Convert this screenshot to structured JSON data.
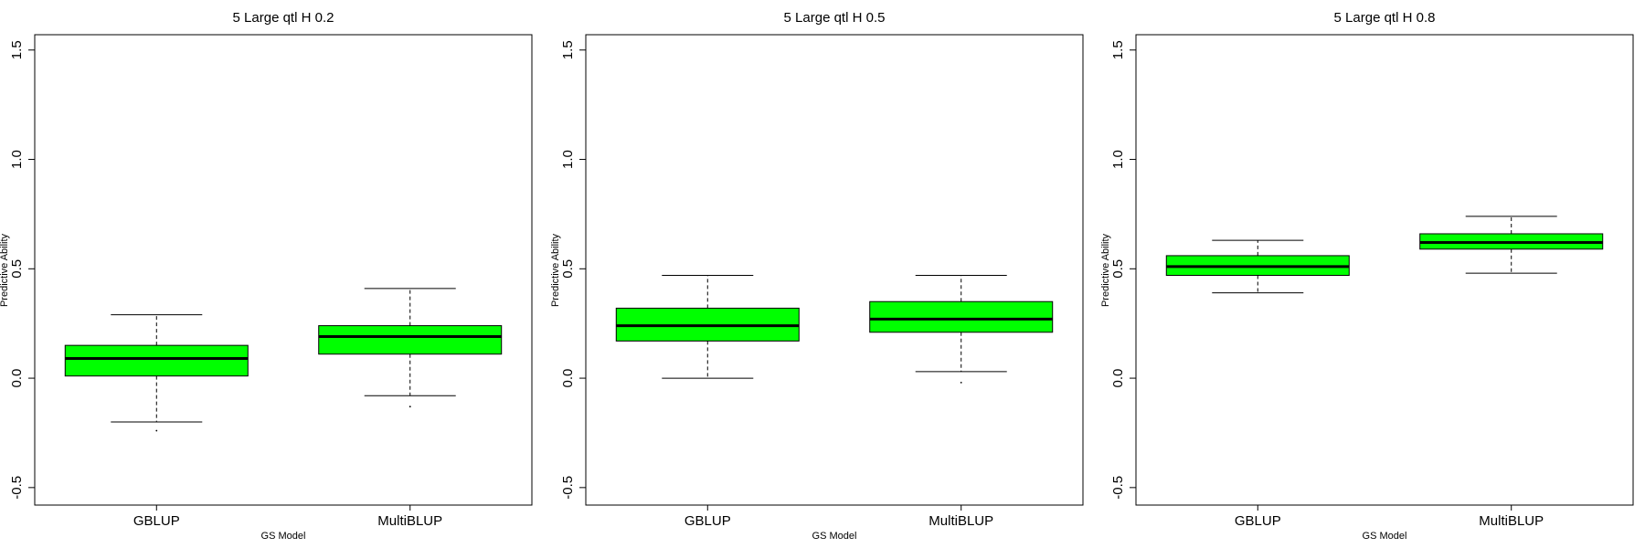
{
  "chart_data": [
    {
      "type": "box",
      "title": "5 Large qtl H 0.2",
      "xlabel": "GS Model",
      "ylabel": "Predictive Ability",
      "ylim": [
        -0.58,
        1.57
      ],
      "yticks": [
        "-0.5",
        "0.0",
        "0.5",
        "1.0",
        "1.5"
      ],
      "categories": [
        "GBLUP",
        "MultiBLUP"
      ],
      "box_color": "#00ff00",
      "boxes": [
        {
          "whisker_low": -0.2,
          "q1": 0.01,
          "median": 0.09,
          "q3": 0.15,
          "whisker_high": 0.29,
          "outliers": [
            -0.24
          ]
        },
        {
          "whisker_low": -0.08,
          "q1": 0.11,
          "median": 0.19,
          "q3": 0.24,
          "whisker_high": 0.41,
          "outliers": [
            -0.13
          ]
        }
      ]
    },
    {
      "type": "box",
      "title": "5 Large qtl H 0.5",
      "xlabel": "GS Model",
      "ylabel": "Predictive Ability",
      "ylim": [
        -0.58,
        1.57
      ],
      "yticks": [
        "-0.5",
        "0.0",
        "0.5",
        "1.0",
        "1.5"
      ],
      "categories": [
        "GBLUP",
        "MultiBLUP"
      ],
      "box_color": "#00ff00",
      "boxes": [
        {
          "whisker_low": 0.0,
          "q1": 0.17,
          "median": 0.24,
          "q3": 0.32,
          "whisker_high": 0.47,
          "outliers": []
        },
        {
          "whisker_low": 0.03,
          "q1": 0.21,
          "median": 0.27,
          "q3": 0.35,
          "whisker_high": 0.47,
          "outliers": [
            -0.02
          ]
        }
      ]
    },
    {
      "type": "box",
      "title": "5 Large qtl H 0.8",
      "xlabel": "GS Model",
      "ylabel": "Predictive Ability",
      "ylim": [
        -0.58,
        1.57
      ],
      "yticks": [
        "-0.5",
        "0.0",
        "0.5",
        "1.0",
        "1.5"
      ],
      "categories": [
        "GBLUP",
        "MultiBLUP"
      ],
      "box_color": "#00ff00",
      "boxes": [
        {
          "whisker_low": 0.39,
          "q1": 0.47,
          "median": 0.51,
          "q3": 0.56,
          "whisker_high": 0.63,
          "outliers": []
        },
        {
          "whisker_low": 0.48,
          "q1": 0.59,
          "median": 0.62,
          "q3": 0.66,
          "whisker_high": 0.74,
          "outliers": []
        }
      ]
    }
  ]
}
